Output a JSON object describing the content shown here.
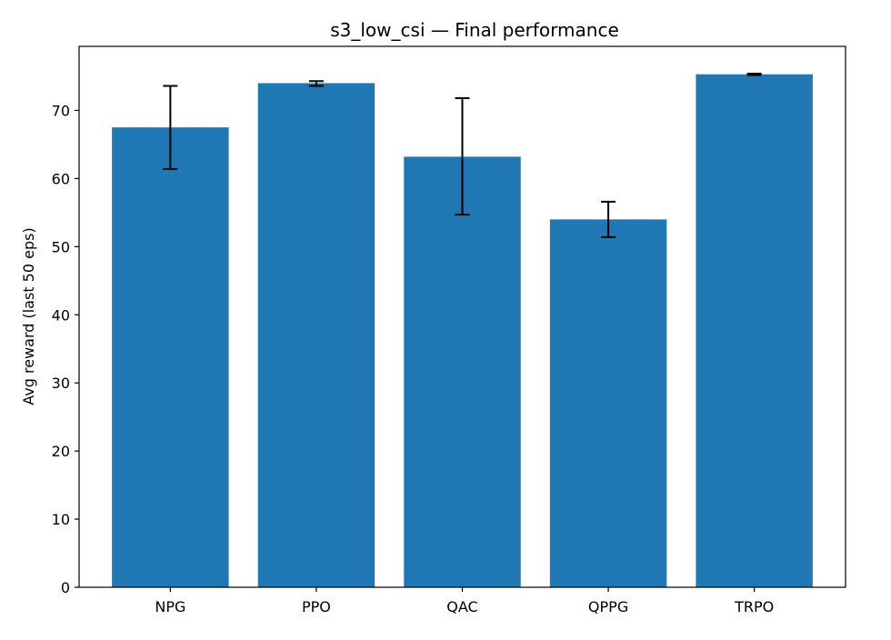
{
  "chart_data": {
    "type": "bar",
    "title": "s3_low_csi — Final performance",
    "xlabel": "",
    "ylabel": "Avg reward (last 50 eps)",
    "categories": [
      "NPG",
      "PPO",
      "QAC",
      "QPPG",
      "TRPO"
    ],
    "values": [
      67.5,
      74.0,
      63.2,
      54.0,
      75.3
    ],
    "error_low": [
      61.4,
      73.6,
      54.7,
      51.4,
      75.2
    ],
    "error_high": [
      73.6,
      74.3,
      71.8,
      56.6,
      75.4
    ],
    "ylim": [
      0,
      79.4
    ],
    "yticks": [
      0,
      10,
      20,
      30,
      40,
      50,
      60,
      70
    ],
    "grid": false,
    "legend": "none",
    "colors": {
      "bar": "#1f77b4",
      "errorbar": "#000000",
      "axes": "#000000"
    }
  }
}
